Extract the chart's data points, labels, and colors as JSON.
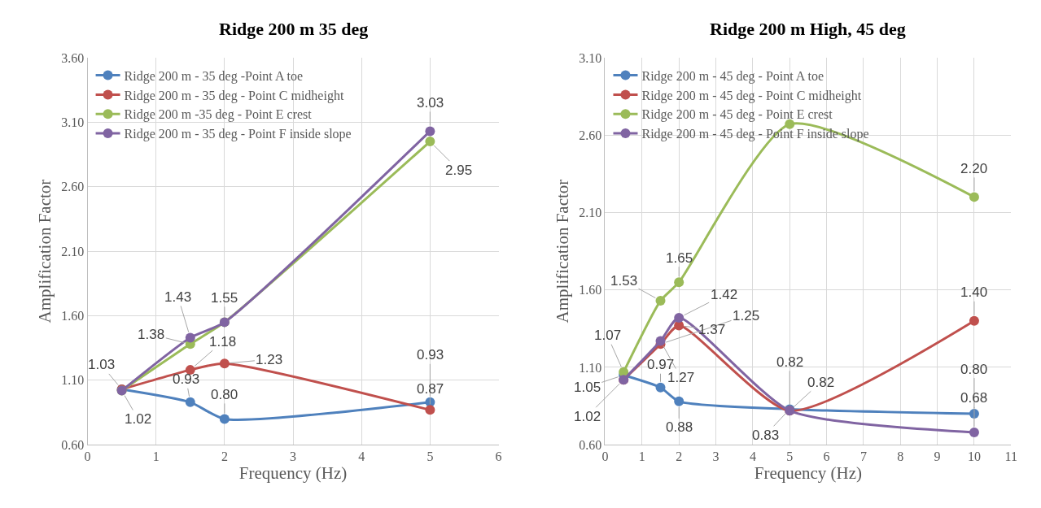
{
  "chart_data": [
    {
      "type": "line",
      "title": "Ridge 200 m 35 deg",
      "xlabel": "Frequency (Hz)",
      "ylabel": "Amplification Factor",
      "marker": "circle",
      "grid": true,
      "legend": "top left",
      "xlim": [
        0,
        6
      ],
      "xticks": [
        0,
        1,
        2,
        3,
        4,
        5,
        6
      ],
      "ylim": [
        0.6,
        3.6
      ],
      "yticks": [
        {
          "value": 0.6,
          "label": "0.60"
        },
        {
          "value": 1.1,
          "label": "1.10"
        },
        {
          "value": 1.6,
          "label": "1.60"
        },
        {
          "value": 2.1,
          "label": "2.10"
        },
        {
          "value": 2.6,
          "label": "2.60"
        },
        {
          "value": 3.1,
          "label": "3.10"
        },
        {
          "value": 3.6,
          "label": "3.60"
        }
      ],
      "series": [
        {
          "name": "Ridge 200 m - 35 deg -Point A toe",
          "color": "#4f81bd",
          "x": [
            0.5,
            1.5,
            2,
            5
          ],
          "values": [
            1.03,
            0.93,
            0.8,
            0.93
          ],
          "value_labels": [
            "1.03",
            "0.93",
            "0.80",
            "0.93"
          ]
        },
        {
          "name": "Ridge 200 m - 35 deg - Point C midheight",
          "color": "#c0504d",
          "x": [
            0.5,
            1.5,
            2,
            5
          ],
          "values": [
            1.03,
            1.18,
            1.23,
            0.87
          ],
          "value_labels": [
            null,
            "1.18",
            "1.23",
            "0.87"
          ]
        },
        {
          "name": "Ridge 200 m -35 deg - Point E crest",
          "color": "#9bbb59",
          "x": [
            0.5,
            1.5,
            2,
            5
          ],
          "values": [
            1.02,
            1.38,
            1.55,
            2.95
          ],
          "value_labels": [
            "1.02",
            "1.38",
            null,
            "2.95"
          ]
        },
        {
          "name": "Ridge 200 m - 35 deg - Point F inside slope",
          "color": "#8064a2",
          "x": [
            0.5,
            1.5,
            2,
            5
          ],
          "values": [
            1.02,
            1.43,
            1.55,
            3.03
          ],
          "value_labels": [
            null,
            "1.43",
            "1.55",
            "3.03"
          ]
        }
      ]
    },
    {
      "type": "line",
      "title": "Ridge 200 m High, 45 deg",
      "xlabel": "Frequency (Hz)",
      "ylabel": "Amplification Factor",
      "marker": "circle",
      "grid": true,
      "legend": "top left",
      "xlim": [
        0,
        11
      ],
      "xticks": [
        0,
        1,
        2,
        3,
        4,
        5,
        6,
        7,
        8,
        9,
        10,
        11
      ],
      "ylim": [
        0.6,
        3.1
      ],
      "yticks": [
        {
          "value": 0.6,
          "label": "0.60"
        },
        {
          "value": 1.1,
          "label": "1.10"
        },
        {
          "value": 1.6,
          "label": "1.60"
        },
        {
          "value": 2.1,
          "label": "2.10"
        },
        {
          "value": 2.6,
          "label": "2.60"
        },
        {
          "value": 3.1,
          "label": "3.10"
        }
      ],
      "series": [
        {
          "name": "Ridge 200 m - 45 deg - Point A toe",
          "color": "#4f81bd",
          "x": [
            0.5,
            1.5,
            2,
            5,
            10
          ],
          "values": [
            1.05,
            0.97,
            0.88,
            0.83,
            0.8
          ],
          "value_labels": [
            "1.05",
            "0.97",
            "0.88",
            "0.83",
            "0.80"
          ]
        },
        {
          "name": "Ridge 200 m - 45 deg - Point C midheight",
          "color": "#c0504d",
          "x": [
            0.5,
            1.5,
            2,
            5,
            10
          ],
          "values": [
            1.02,
            1.25,
            1.37,
            0.82,
            1.4
          ],
          "value_labels": [
            "1.02",
            "1.25",
            "1.37",
            "0.82",
            "1.40"
          ]
        },
        {
          "name": "Ridge 200 m - 45 deg - Point E crest",
          "color": "#9bbb59",
          "x": [
            0.5,
            1.5,
            2,
            5,
            10
          ],
          "values": [
            1.07,
            1.53,
            1.65,
            2.67,
            2.2
          ],
          "value_labels": [
            "1.07",
            "1.53",
            "1.65",
            null,
            "2.20"
          ]
        },
        {
          "name": "Ridge 200 m - 45 deg - Point F inside slope",
          "color": "#8064a2",
          "x": [
            0.5,
            1.5,
            2,
            5,
            10
          ],
          "values": [
            1.02,
            1.27,
            1.42,
            0.82,
            0.68
          ],
          "value_labels": [
            null,
            "1.27",
            "1.42",
            "0.82",
            "0.68"
          ]
        }
      ]
    }
  ]
}
